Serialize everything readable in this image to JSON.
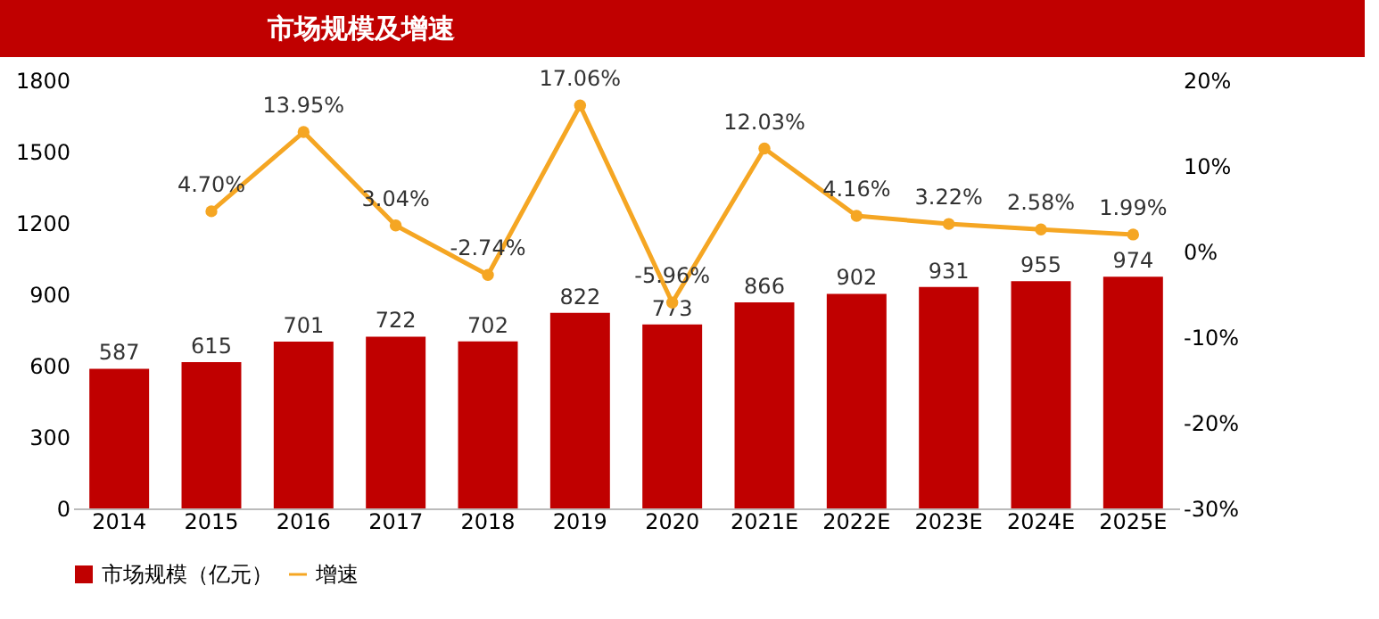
{
  "chart_data": {
    "type": "bar",
    "title": "市场规模及增速",
    "categories": [
      "2014",
      "2015",
      "2016",
      "2017",
      "2018",
      "2019",
      "2020",
      "2021E",
      "2022E",
      "2023E",
      "2024E",
      "2025E"
    ],
    "series": [
      {
        "name": "市场规模（亿元）",
        "type": "bar",
        "color": "#c00000",
        "values": [
          587,
          615,
          701,
          722,
          702,
          822,
          773,
          866,
          902,
          931,
          955,
          974
        ]
      },
      {
        "name": "增速",
        "type": "line",
        "axis": "y2",
        "color": "#f5a623",
        "values": [
          null,
          4.7,
          13.95,
          3.04,
          -2.74,
          17.06,
          -5.96,
          12.03,
          4.16,
          3.22,
          2.58,
          1.99
        ],
        "value_labels": [
          null,
          "4.70%",
          "13.95%",
          "3.04%",
          "-2.74%",
          "17.06%",
          "-5.96%",
          "12.03%",
          "4.16%",
          "3.22%",
          "2.58%",
          "1.99%"
        ]
      }
    ],
    "data_labels": true,
    "ylim": [
      0,
      1800
    ],
    "yticks": [
      0,
      300,
      600,
      900,
      1200,
      1500,
      1800
    ],
    "y2lim": [
      -30,
      20
    ],
    "y2ticks": [
      {
        "value": -30,
        "label": "-30%"
      },
      {
        "value": -20,
        "label": "-20%"
      },
      {
        "value": -10,
        "label": "-10%"
      },
      {
        "value": 0,
        "label": "0%"
      },
      {
        "value": 10,
        "label": "10%"
      },
      {
        "value": 20,
        "label": "20%"
      }
    ],
    "legend": "bottom",
    "marker": "circle"
  }
}
